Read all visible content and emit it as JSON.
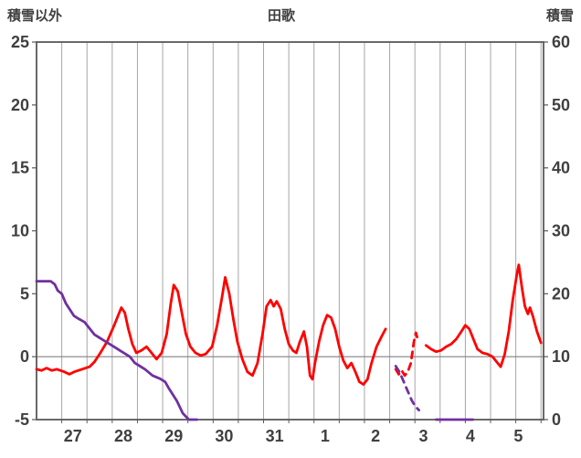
{
  "chart_data": {
    "type": "line",
    "title": "田歌",
    "left_axis": {
      "label": "積雪以外",
      "min": -5,
      "max": 25,
      "ticks": [
        25,
        20,
        15,
        10,
        5,
        0,
        -5
      ]
    },
    "right_axis": {
      "label": "積雪",
      "min": 0,
      "max": 60,
      "ticks": [
        60,
        50,
        40,
        30,
        20,
        10,
        0
      ]
    },
    "x_axis": {
      "labels": [
        "27",
        "28",
        "29",
        "30",
        "31",
        "1",
        "2",
        "3",
        "4",
        "5"
      ],
      "label_positions": [
        0.72,
        1.72,
        2.72,
        3.72,
        4.72,
        5.72,
        6.72,
        7.67,
        8.6,
        9.55
      ],
      "domain": [
        0,
        10.05
      ],
      "gridline_step": 0.5
    },
    "style": {
      "grid_color": "#a6a6a6",
      "zero_line_color": "#808080",
      "border_color": "#595959",
      "text_color": "#404040",
      "background": "#ffffff"
    },
    "series": [
      {
        "name": "積雪以外",
        "axis": "left",
        "color": "#ff0000",
        "width": 2.8,
        "segments": [
          {
            "dashed": false,
            "points": [
              [
                0.0,
                -1.0
              ],
              [
                0.1,
                -1.1
              ],
              [
                0.2,
                -0.9
              ],
              [
                0.3,
                -1.1
              ],
              [
                0.4,
                -1.0
              ],
              [
                0.55,
                -1.2
              ],
              [
                0.65,
                -1.4
              ],
              [
                0.75,
                -1.2
              ],
              [
                0.9,
                -1.0
              ],
              [
                1.05,
                -0.8
              ],
              [
                1.15,
                -0.4
              ],
              [
                1.25,
                0.2
              ],
              [
                1.4,
                1.2
              ],
              [
                1.55,
                2.6
              ],
              [
                1.68,
                3.9
              ],
              [
                1.75,
                3.5
              ],
              [
                1.82,
                2.2
              ],
              [
                1.9,
                1.0
              ],
              [
                1.98,
                0.3
              ],
              [
                2.08,
                0.5
              ],
              [
                2.18,
                0.8
              ],
              [
                2.28,
                0.3
              ],
              [
                2.38,
                -0.2
              ],
              [
                2.48,
                0.3
              ],
              [
                2.58,
                1.8
              ],
              [
                2.66,
                4.2
              ],
              [
                2.72,
                5.7
              ],
              [
                2.8,
                5.2
              ],
              [
                2.88,
                3.5
              ],
              [
                2.96,
                1.8
              ],
              [
                3.05,
                0.8
              ],
              [
                3.15,
                0.3
              ],
              [
                3.25,
                0.1
              ],
              [
                3.35,
                0.2
              ],
              [
                3.48,
                0.8
              ],
              [
                3.58,
                2.5
              ],
              [
                3.68,
                4.8
              ],
              [
                3.74,
                6.3
              ],
              [
                3.82,
                5.0
              ],
              [
                3.9,
                3.0
              ],
              [
                3.98,
                1.2
              ],
              [
                4.08,
                -0.2
              ],
              [
                4.18,
                -1.2
              ],
              [
                4.28,
                -1.5
              ],
              [
                4.38,
                -0.5
              ],
              [
                4.48,
                1.8
              ],
              [
                4.56,
                4.0
              ],
              [
                4.64,
                4.5
              ],
              [
                4.7,
                4.0
              ],
              [
                4.76,
                4.4
              ],
              [
                4.84,
                3.8
              ],
              [
                4.92,
                2.2
              ],
              [
                5.0,
                1.0
              ],
              [
                5.08,
                0.5
              ],
              [
                5.15,
                0.3
              ],
              [
                5.22,
                1.2
              ],
              [
                5.3,
                2.0
              ],
              [
                5.36,
                0.8
              ],
              [
                5.42,
                -1.5
              ],
              [
                5.47,
                -1.8
              ],
              [
                5.52,
                -0.5
              ],
              [
                5.6,
                1.2
              ],
              [
                5.68,
                2.5
              ],
              [
                5.76,
                3.3
              ],
              [
                5.84,
                3.1
              ],
              [
                5.92,
                2.2
              ],
              [
                6.0,
                0.8
              ],
              [
                6.08,
                -0.3
              ],
              [
                6.16,
                -0.9
              ],
              [
                6.24,
                -0.5
              ],
              [
                6.32,
                -1.2
              ],
              [
                6.4,
                -2.0
              ],
              [
                6.48,
                -2.2
              ],
              [
                6.56,
                -1.8
              ],
              [
                6.64,
                -0.5
              ],
              [
                6.74,
                0.8
              ],
              [
                6.84,
                1.6
              ],
              [
                6.92,
                2.2
              ]
            ]
          },
          {
            "dashed": true,
            "points": [
              [
                7.12,
                -1.0
              ],
              [
                7.18,
                -1.4
              ],
              [
                7.24,
                -1.1
              ],
              [
                7.3,
                -1.5
              ],
              [
                7.36,
                -1.2
              ],
              [
                7.42,
                -0.5
              ],
              [
                7.48,
                1.2
              ],
              [
                7.52,
                1.9
              ],
              [
                7.56,
                1.3
              ]
            ]
          },
          {
            "dashed": false,
            "points": [
              [
                7.72,
                0.9
              ],
              [
                7.82,
                0.6
              ],
              [
                7.92,
                0.4
              ],
              [
                8.02,
                0.5
              ],
              [
                8.12,
                0.8
              ],
              [
                8.22,
                1.0
              ],
              [
                8.32,
                1.4
              ],
              [
                8.42,
                2.0
              ],
              [
                8.5,
                2.5
              ],
              [
                8.58,
                2.2
              ],
              [
                8.66,
                1.4
              ],
              [
                8.74,
                0.6
              ],
              [
                8.84,
                0.3
              ],
              [
                8.94,
                0.2
              ],
              [
                9.04,
                0.0
              ],
              [
                9.12,
                -0.4
              ],
              [
                9.2,
                -0.8
              ],
              [
                9.28,
                0.2
              ],
              [
                9.36,
                2.0
              ],
              [
                9.44,
                4.5
              ],
              [
                9.52,
                6.5
              ],
              [
                9.56,
                7.3
              ],
              [
                9.62,
                5.5
              ],
              [
                9.68,
                4.0
              ],
              [
                9.74,
                3.4
              ],
              [
                9.78,
                3.9
              ],
              [
                9.84,
                3.2
              ],
              [
                9.92,
                2.0
              ],
              [
                10.0,
                1.1
              ]
            ]
          }
        ]
      },
      {
        "name": "積雪",
        "axis": "right",
        "color": "#7030a0",
        "width": 2.8,
        "segments": [
          {
            "dashed": false,
            "points": [
              [
                0.0,
                22
              ],
              [
                0.28,
                22
              ],
              [
                0.36,
                21.5
              ],
              [
                0.42,
                20.5
              ],
              [
                0.5,
                20
              ],
              [
                0.58,
                18.5
              ],
              [
                0.66,
                17.5
              ],
              [
                0.74,
                16.5
              ],
              [
                0.84,
                16
              ],
              [
                0.95,
                15.5
              ],
              [
                1.05,
                14.5
              ],
              [
                1.15,
                13.5
              ],
              [
                1.25,
                13
              ],
              [
                1.35,
                12.5
              ],
              [
                1.45,
                12
              ],
              [
                1.55,
                11.5
              ],
              [
                1.65,
                11
              ],
              [
                1.75,
                10.5
              ],
              [
                1.85,
                10
              ],
              [
                1.95,
                9
              ],
              [
                2.05,
                8.5
              ],
              [
                2.15,
                8
              ],
              [
                2.3,
                7
              ],
              [
                2.45,
                6.5
              ],
              [
                2.55,
                6
              ],
              [
                2.62,
                5
              ],
              [
                2.7,
                4
              ],
              [
                2.78,
                3
              ],
              [
                2.84,
                2
              ],
              [
                2.9,
                1
              ],
              [
                2.96,
                0.5
              ],
              [
                3.02,
                0
              ],
              [
                3.18,
                0
              ]
            ]
          },
          {
            "dashed": true,
            "points": [
              [
                7.12,
                8.5
              ],
              [
                7.2,
                7.5
              ],
              [
                7.28,
                6
              ],
              [
                7.36,
                4.5
              ],
              [
                7.44,
                3
              ],
              [
                7.52,
                2
              ],
              [
                7.58,
                1.5
              ]
            ]
          },
          {
            "dashed": false,
            "points": [
              [
                7.92,
                0
              ],
              [
                8.3,
                0
              ],
              [
                8.65,
                0
              ]
            ]
          }
        ]
      }
    ]
  }
}
